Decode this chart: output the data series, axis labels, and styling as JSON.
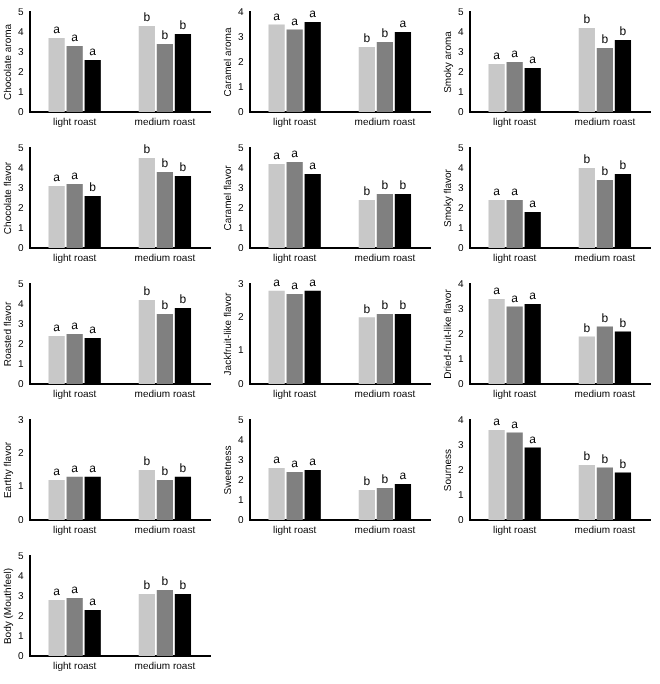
{
  "chart_data": [
    {
      "type": "bar",
      "ylabel": "Chocolate aroma",
      "ylim": [
        0,
        5
      ],
      "yticks": [
        0,
        1,
        2,
        3,
        4,
        5
      ],
      "categories": [
        "light roast",
        "medium roast"
      ],
      "series": [
        {
          "color": "#c8c8c8",
          "values": [
            3.7,
            4.3
          ],
          "value_labels": [
            "a",
            "b"
          ]
        },
        {
          "color": "#808080",
          "values": [
            3.3,
            3.4
          ],
          "value_labels": [
            "a",
            "b"
          ]
        },
        {
          "color": "#000000",
          "values": [
            2.6,
            3.9
          ],
          "value_labels": [
            "a",
            "b"
          ]
        }
      ]
    },
    {
      "type": "bar",
      "ylabel": "Caramel aroma",
      "ylim": [
        0,
        4
      ],
      "yticks": [
        0,
        1,
        2,
        3,
        4
      ],
      "categories": [
        "light roast",
        "medium roast"
      ],
      "series": [
        {
          "color": "#c8c8c8",
          "values": [
            3.5,
            2.6
          ],
          "value_labels": [
            "a",
            "b"
          ]
        },
        {
          "color": "#808080",
          "values": [
            3.3,
            2.8
          ],
          "value_labels": [
            "a",
            "b"
          ]
        },
        {
          "color": "#000000",
          "values": [
            3.6,
            3.2
          ],
          "value_labels": [
            "a",
            "a"
          ]
        }
      ]
    },
    {
      "type": "bar",
      "ylabel": "Smoky aroma",
      "ylim": [
        0,
        5
      ],
      "yticks": [
        0,
        1,
        2,
        3,
        4,
        5
      ],
      "categories": [
        "light roast",
        "medium roast"
      ],
      "series": [
        {
          "color": "#c8c8c8",
          "values": [
            2.4,
            4.2
          ],
          "value_labels": [
            "a",
            "b"
          ]
        },
        {
          "color": "#808080",
          "values": [
            2.5,
            3.2
          ],
          "value_labels": [
            "a",
            "b"
          ]
        },
        {
          "color": "#000000",
          "values": [
            2.2,
            3.6
          ],
          "value_labels": [
            "a",
            "b"
          ]
        }
      ]
    },
    {
      "type": "bar",
      "ylabel": "Chocolate flavor",
      "ylim": [
        0,
        5
      ],
      "yticks": [
        0,
        1,
        2,
        3,
        4,
        5
      ],
      "categories": [
        "light roast",
        "medium roast"
      ],
      "series": [
        {
          "color": "#c8c8c8",
          "values": [
            3.1,
            4.5
          ],
          "value_labels": [
            "a",
            "b"
          ]
        },
        {
          "color": "#808080",
          "values": [
            3.2,
            3.8
          ],
          "value_labels": [
            "a",
            "b"
          ]
        },
        {
          "color": "#000000",
          "values": [
            2.6,
            3.6
          ],
          "value_labels": [
            "b",
            "b"
          ]
        }
      ]
    },
    {
      "type": "bar",
      "ylabel": "Caramel flavor",
      "ylim": [
        0,
        5
      ],
      "yticks": [
        0,
        1,
        2,
        3,
        4,
        5
      ],
      "categories": [
        "light roast",
        "medium roast"
      ],
      "series": [
        {
          "color": "#c8c8c8",
          "values": [
            4.2,
            2.4
          ],
          "value_labels": [
            "a",
            "b"
          ]
        },
        {
          "color": "#808080",
          "values": [
            4.3,
            2.7
          ],
          "value_labels": [
            "a",
            "b"
          ]
        },
        {
          "color": "#000000",
          "values": [
            3.7,
            2.7
          ],
          "value_labels": [
            "a",
            "b"
          ]
        }
      ]
    },
    {
      "type": "bar",
      "ylabel": "Smoky flavor",
      "ylim": [
        0,
        5
      ],
      "yticks": [
        0,
        1,
        2,
        3,
        4,
        5
      ],
      "categories": [
        "light roast",
        "medium roast"
      ],
      "series": [
        {
          "color": "#c8c8c8",
          "values": [
            2.4,
            4.0
          ],
          "value_labels": [
            "a",
            "b"
          ]
        },
        {
          "color": "#808080",
          "values": [
            2.4,
            3.4
          ],
          "value_labels": [
            "a",
            "b"
          ]
        },
        {
          "color": "#000000",
          "values": [
            1.8,
            3.7
          ],
          "value_labels": [
            "a",
            "b"
          ]
        }
      ]
    },
    {
      "type": "bar",
      "ylabel": "Roasted flavor",
      "ylim": [
        0,
        5
      ],
      "yticks": [
        0,
        1,
        2,
        3,
        4,
        5
      ],
      "categories": [
        "light roast",
        "medium roast"
      ],
      "series": [
        {
          "color": "#c8c8c8",
          "values": [
            2.4,
            4.2
          ],
          "value_labels": [
            "a",
            "b"
          ]
        },
        {
          "color": "#808080",
          "values": [
            2.5,
            3.5
          ],
          "value_labels": [
            "a",
            "b"
          ]
        },
        {
          "color": "#000000",
          "values": [
            2.3,
            3.8
          ],
          "value_labels": [
            "a",
            "b"
          ]
        }
      ]
    },
    {
      "type": "bar",
      "ylabel": "Jackfruit-like flavor",
      "ylim": [
        0,
        3
      ],
      "yticks": [
        0,
        1,
        2,
        3
      ],
      "categories": [
        "light roast",
        "medium roast"
      ],
      "series": [
        {
          "color": "#c8c8c8",
          "values": [
            2.8,
            2.0
          ],
          "value_labels": [
            "a",
            "b"
          ]
        },
        {
          "color": "#808080",
          "values": [
            2.7,
            2.1
          ],
          "value_labels": [
            "a",
            "b"
          ]
        },
        {
          "color": "#000000",
          "values": [
            2.8,
            2.1
          ],
          "value_labels": [
            "a",
            "b"
          ]
        }
      ]
    },
    {
      "type": "bar",
      "ylabel": "Dried-fruit-like flavor",
      "ylim": [
        0,
        4
      ],
      "yticks": [
        0,
        1,
        2,
        3,
        4
      ],
      "categories": [
        "light roast",
        "medium roast"
      ],
      "series": [
        {
          "color": "#c8c8c8",
          "values": [
            3.4,
            1.9
          ],
          "value_labels": [
            "a",
            "b"
          ]
        },
        {
          "color": "#808080",
          "values": [
            3.1,
            2.3
          ],
          "value_labels": [
            "a",
            "b"
          ]
        },
        {
          "color": "#000000",
          "values": [
            3.2,
            2.1
          ],
          "value_labels": [
            "a",
            "b"
          ]
        }
      ]
    },
    {
      "type": "bar",
      "ylabel": "Earthy flavor",
      "ylim": [
        0,
        3
      ],
      "yticks": [
        0,
        1,
        2,
        3
      ],
      "categories": [
        "light roast",
        "medium roast"
      ],
      "series": [
        {
          "color": "#c8c8c8",
          "values": [
            1.2,
            1.5
          ],
          "value_labels": [
            "a",
            "b"
          ]
        },
        {
          "color": "#808080",
          "values": [
            1.3,
            1.2
          ],
          "value_labels": [
            "a",
            "b"
          ]
        },
        {
          "color": "#000000",
          "values": [
            1.3,
            1.3
          ],
          "value_labels": [
            "a",
            "b"
          ]
        }
      ]
    },
    {
      "type": "bar",
      "ylabel": "Sweetness",
      "ylim": [
        0,
        5
      ],
      "yticks": [
        0,
        1,
        2,
        3,
        4,
        5
      ],
      "categories": [
        "light roast",
        "medium roast"
      ],
      "series": [
        {
          "color": "#c8c8c8",
          "values": [
            2.6,
            1.5
          ],
          "value_labels": [
            "a",
            "b"
          ]
        },
        {
          "color": "#808080",
          "values": [
            2.4,
            1.6
          ],
          "value_labels": [
            "a",
            "b"
          ]
        },
        {
          "color": "#000000",
          "values": [
            2.5,
            1.8
          ],
          "value_labels": [
            "a",
            "a"
          ]
        }
      ]
    },
    {
      "type": "bar",
      "ylabel": "Sourness",
      "ylim": [
        0,
        4
      ],
      "yticks": [
        0,
        1,
        2,
        3,
        4
      ],
      "categories": [
        "light roast",
        "medium roast"
      ],
      "series": [
        {
          "color": "#c8c8c8",
          "values": [
            3.6,
            2.2
          ],
          "value_labels": [
            "a",
            "b"
          ]
        },
        {
          "color": "#808080",
          "values": [
            3.5,
            2.1
          ],
          "value_labels": [
            "a",
            "b"
          ]
        },
        {
          "color": "#000000",
          "values": [
            2.9,
            1.9
          ],
          "value_labels": [
            "a",
            "b"
          ]
        }
      ]
    },
    {
      "type": "bar",
      "ylabel": "Body (Mouthfeel)",
      "ylim": [
        0,
        5
      ],
      "yticks": [
        0,
        1,
        2,
        3,
        4,
        5
      ],
      "categories": [
        "light roast",
        "medium roast"
      ],
      "series": [
        {
          "color": "#c8c8c8",
          "values": [
            2.8,
            3.1
          ],
          "value_labels": [
            "a",
            "b"
          ]
        },
        {
          "color": "#808080",
          "values": [
            2.9,
            3.3
          ],
          "value_labels": [
            "a",
            "b"
          ]
        },
        {
          "color": "#000000",
          "values": [
            2.3,
            3.1
          ],
          "value_labels": [
            "a",
            "b"
          ]
        }
      ]
    }
  ]
}
